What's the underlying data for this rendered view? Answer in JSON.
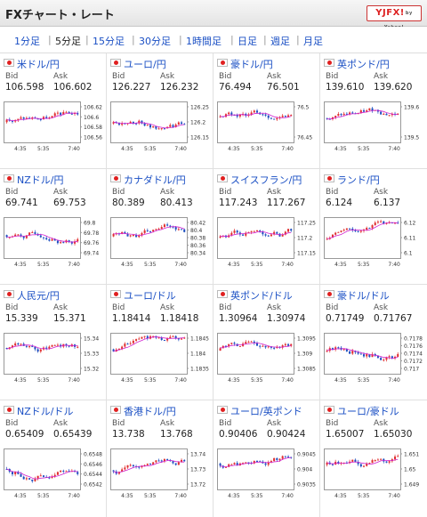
{
  "header": {
    "title": "FXチャート・レート",
    "brand": "YJFX!",
    "brand_sub": "by Yahoo!"
  },
  "tabs": [
    "1分足",
    "5分足",
    "15分足",
    "30分足",
    "1時間足",
    "日足",
    "週足",
    "月足"
  ],
  "active_tab": 1,
  "labels": {
    "bid": "Bid",
    "ask": "Ask"
  },
  "colors": {
    "up": "#e03030",
    "down": "#2050c0",
    "ma": "#d020d0",
    "ma2": "#10a0d0",
    "link": "#1a4fc4"
  },
  "pairs": [
    {
      "name": "米ドル/円",
      "bid": "106.598",
      "ask": "106.602",
      "x_ticks": [
        "4:35",
        "5:35",
        "7:40"
      ],
      "y_ticks": [
        "106.62",
        "106.6",
        "106.58",
        "106.56"
      ]
    },
    {
      "name": "ユーロ/円",
      "bid": "126.227",
      "ask": "126.232",
      "x_ticks": [
        "4:35",
        "5:35",
        "7:40"
      ],
      "y_ticks": [
        "126.25",
        "126.2",
        "126.15"
      ]
    },
    {
      "name": "豪ドル/円",
      "bid": "76.494",
      "ask": "76.501",
      "x_ticks": [
        "4:35",
        "5:35",
        "7:40"
      ],
      "y_ticks": [
        "76.5",
        "76.45"
      ]
    },
    {
      "name": "英ポンド/円",
      "bid": "139.610",
      "ask": "139.620",
      "x_ticks": [
        "4:35",
        "5:35",
        "7:40"
      ],
      "y_ticks": [
        "139.6",
        "139.5"
      ]
    },
    {
      "name": "NZドル/円",
      "bid": "69.741",
      "ask": "69.753",
      "x_ticks": [
        "4:35",
        "5:35",
        "7:40"
      ],
      "y_ticks": [
        "69.8",
        "69.78",
        "69.76",
        "69.74"
      ]
    },
    {
      "name": "カナダドル/円",
      "bid": "80.389",
      "ask": "80.413",
      "x_ticks": [
        "4:35",
        "5:35",
        "7:40"
      ],
      "y_ticks": [
        "80.42",
        "80.4",
        "80.38",
        "80.36",
        "80.34"
      ]
    },
    {
      "name": "スイスフラン/円",
      "bid": "117.243",
      "ask": "117.267",
      "x_ticks": [
        "4:35",
        "5:35",
        "7:40"
      ],
      "y_ticks": [
        "117.25",
        "117.2",
        "117.15"
      ]
    },
    {
      "name": "ランド/円",
      "bid": "6.124",
      "ask": "6.137",
      "x_ticks": [
        "4:35",
        "5:35",
        "7:40"
      ],
      "y_ticks": [
        "6.12",
        "6.11",
        "6.1"
      ]
    },
    {
      "name": "人民元/円",
      "bid": "15.339",
      "ask": "15.371",
      "x_ticks": [
        "4:35",
        "5:35",
        "7:40"
      ],
      "y_ticks": [
        "15.34",
        "15.33",
        "15.32"
      ]
    },
    {
      "name": "ユーロ/ドル",
      "bid": "1.18414",
      "ask": "1.18418",
      "x_ticks": [
        "4:35",
        "5:35",
        "7:40"
      ],
      "y_ticks": [
        "1.1845",
        "1.184",
        "1.1835"
      ]
    },
    {
      "name": "英ポンド/ドル",
      "bid": "1.30964",
      "ask": "1.30974",
      "x_ticks": [
        "4:35",
        "5:35",
        "7:40"
      ],
      "y_ticks": [
        "1.3095",
        "1.309",
        "1.3085"
      ]
    },
    {
      "name": "豪ドル/ドル",
      "bid": "0.71749",
      "ask": "0.71767",
      "x_ticks": [
        "4:35",
        "5:35",
        "7:40"
      ],
      "y_ticks": [
        "0.7178",
        "0.7176",
        "0.7174",
        "0.7172",
        "0.717"
      ]
    },
    {
      "name": "NZドル/ドル",
      "bid": "0.65409",
      "ask": "0.65439",
      "x_ticks": [
        "4:35",
        "5:35",
        "7:40"
      ],
      "y_ticks": [
        "0.6548",
        "0.6546",
        "0.6544",
        "0.6542"
      ]
    },
    {
      "name": "香港ドル/円",
      "bid": "13.738",
      "ask": "13.768",
      "x_ticks": [
        "4:35",
        "5:35",
        "7:40"
      ],
      "y_ticks": [
        "13.74",
        "13.73",
        "13.72"
      ]
    },
    {
      "name": "ユーロ/英ポンド",
      "bid": "0.90406",
      "ask": "0.90424",
      "x_ticks": [
        "4:35",
        "5:35",
        "7:40"
      ],
      "y_ticks": [
        "0.9045",
        "0.904",
        "0.9035"
      ]
    },
    {
      "name": "ユーロ/豪ドル",
      "bid": "1.65007",
      "ask": "1.65030",
      "x_ticks": [
        "4:35",
        "5:35",
        "7:40"
      ],
      "y_ticks": [
        "1.651",
        "1.65",
        "1.649"
      ]
    }
  ]
}
